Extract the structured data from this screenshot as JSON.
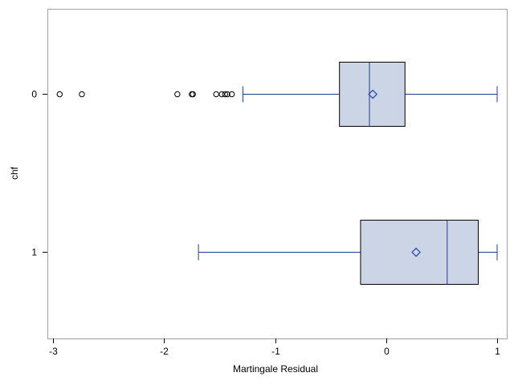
{
  "chart_data": {
    "type": "boxplot",
    "orientation": "horizontal",
    "xlabel": "Martingale Residual",
    "ylabel": "chf",
    "xlim": [
      -3,
      1
    ],
    "xticks": [
      -3,
      -2,
      -1,
      0,
      1
    ],
    "xtick_labels": [
      "-3",
      "-2",
      "-1",
      "0",
      "1"
    ],
    "grid": false,
    "categories": [
      "0",
      "1"
    ],
    "boxes": [
      {
        "category": "0",
        "whisker_low": -1.29,
        "q1": -0.42,
        "median": -0.15,
        "q3": 0.17,
        "whisker_high": 1.0,
        "mean": -0.12,
        "outliers": [
          -2.94,
          -2.74,
          -1.88,
          -1.75,
          -1.74,
          -1.53,
          -1.48,
          -1.45,
          -1.43,
          -1.39
        ]
      },
      {
        "category": "1",
        "whisker_low": -1.69,
        "q1": -0.23,
        "median": 0.55,
        "q3": 0.83,
        "whisker_high": 1.0,
        "mean": 0.27,
        "outliers": []
      }
    ],
    "colors": {
      "box_fill": "#cbd5e5",
      "box_edge": "#000000",
      "whisker": "#1f3f8f",
      "median": "#1f3f8f",
      "mean_marker": "#1f3faf",
      "outlier": "#000000",
      "frame": "#a0a0a0"
    }
  }
}
